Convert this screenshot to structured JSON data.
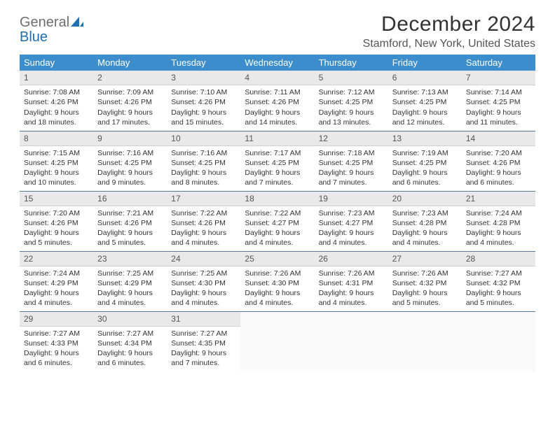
{
  "logo": {
    "word1": "General",
    "word2": "Blue",
    "icon_color": "#1f6fb2",
    "word1_color": "#6e6e6e",
    "word2_color": "#1f6fb2"
  },
  "title": "December 2024",
  "location": "Stamford, New York, United States",
  "header_bg": "#3c8dcc",
  "header_fg": "#ffffff",
  "daynum_bg": "#e9e9e9",
  "row_border": "#5a7a9a",
  "weekdays": [
    "Sunday",
    "Monday",
    "Tuesday",
    "Wednesday",
    "Thursday",
    "Friday",
    "Saturday"
  ],
  "weeks": [
    [
      {
        "n": "1",
        "sr": "Sunrise: 7:08 AM",
        "ss": "Sunset: 4:26 PM",
        "d1": "Daylight: 9 hours",
        "d2": "and 18 minutes."
      },
      {
        "n": "2",
        "sr": "Sunrise: 7:09 AM",
        "ss": "Sunset: 4:26 PM",
        "d1": "Daylight: 9 hours",
        "d2": "and 17 minutes."
      },
      {
        "n": "3",
        "sr": "Sunrise: 7:10 AM",
        "ss": "Sunset: 4:26 PM",
        "d1": "Daylight: 9 hours",
        "d2": "and 15 minutes."
      },
      {
        "n": "4",
        "sr": "Sunrise: 7:11 AM",
        "ss": "Sunset: 4:26 PM",
        "d1": "Daylight: 9 hours",
        "d2": "and 14 minutes."
      },
      {
        "n": "5",
        "sr": "Sunrise: 7:12 AM",
        "ss": "Sunset: 4:25 PM",
        "d1": "Daylight: 9 hours",
        "d2": "and 13 minutes."
      },
      {
        "n": "6",
        "sr": "Sunrise: 7:13 AM",
        "ss": "Sunset: 4:25 PM",
        "d1": "Daylight: 9 hours",
        "d2": "and 12 minutes."
      },
      {
        "n": "7",
        "sr": "Sunrise: 7:14 AM",
        "ss": "Sunset: 4:25 PM",
        "d1": "Daylight: 9 hours",
        "d2": "and 11 minutes."
      }
    ],
    [
      {
        "n": "8",
        "sr": "Sunrise: 7:15 AM",
        "ss": "Sunset: 4:25 PM",
        "d1": "Daylight: 9 hours",
        "d2": "and 10 minutes."
      },
      {
        "n": "9",
        "sr": "Sunrise: 7:16 AM",
        "ss": "Sunset: 4:25 PM",
        "d1": "Daylight: 9 hours",
        "d2": "and 9 minutes."
      },
      {
        "n": "10",
        "sr": "Sunrise: 7:16 AM",
        "ss": "Sunset: 4:25 PM",
        "d1": "Daylight: 9 hours",
        "d2": "and 8 minutes."
      },
      {
        "n": "11",
        "sr": "Sunrise: 7:17 AM",
        "ss": "Sunset: 4:25 PM",
        "d1": "Daylight: 9 hours",
        "d2": "and 7 minutes."
      },
      {
        "n": "12",
        "sr": "Sunrise: 7:18 AM",
        "ss": "Sunset: 4:25 PM",
        "d1": "Daylight: 9 hours",
        "d2": "and 7 minutes."
      },
      {
        "n": "13",
        "sr": "Sunrise: 7:19 AM",
        "ss": "Sunset: 4:25 PM",
        "d1": "Daylight: 9 hours",
        "d2": "and 6 minutes."
      },
      {
        "n": "14",
        "sr": "Sunrise: 7:20 AM",
        "ss": "Sunset: 4:26 PM",
        "d1": "Daylight: 9 hours",
        "d2": "and 6 minutes."
      }
    ],
    [
      {
        "n": "15",
        "sr": "Sunrise: 7:20 AM",
        "ss": "Sunset: 4:26 PM",
        "d1": "Daylight: 9 hours",
        "d2": "and 5 minutes."
      },
      {
        "n": "16",
        "sr": "Sunrise: 7:21 AM",
        "ss": "Sunset: 4:26 PM",
        "d1": "Daylight: 9 hours",
        "d2": "and 5 minutes."
      },
      {
        "n": "17",
        "sr": "Sunrise: 7:22 AM",
        "ss": "Sunset: 4:26 PM",
        "d1": "Daylight: 9 hours",
        "d2": "and 4 minutes."
      },
      {
        "n": "18",
        "sr": "Sunrise: 7:22 AM",
        "ss": "Sunset: 4:27 PM",
        "d1": "Daylight: 9 hours",
        "d2": "and 4 minutes."
      },
      {
        "n": "19",
        "sr": "Sunrise: 7:23 AM",
        "ss": "Sunset: 4:27 PM",
        "d1": "Daylight: 9 hours",
        "d2": "and 4 minutes."
      },
      {
        "n": "20",
        "sr": "Sunrise: 7:23 AM",
        "ss": "Sunset: 4:28 PM",
        "d1": "Daylight: 9 hours",
        "d2": "and 4 minutes."
      },
      {
        "n": "21",
        "sr": "Sunrise: 7:24 AM",
        "ss": "Sunset: 4:28 PM",
        "d1": "Daylight: 9 hours",
        "d2": "and 4 minutes."
      }
    ],
    [
      {
        "n": "22",
        "sr": "Sunrise: 7:24 AM",
        "ss": "Sunset: 4:29 PM",
        "d1": "Daylight: 9 hours",
        "d2": "and 4 minutes."
      },
      {
        "n": "23",
        "sr": "Sunrise: 7:25 AM",
        "ss": "Sunset: 4:29 PM",
        "d1": "Daylight: 9 hours",
        "d2": "and 4 minutes."
      },
      {
        "n": "24",
        "sr": "Sunrise: 7:25 AM",
        "ss": "Sunset: 4:30 PM",
        "d1": "Daylight: 9 hours",
        "d2": "and 4 minutes."
      },
      {
        "n": "25",
        "sr": "Sunrise: 7:26 AM",
        "ss": "Sunset: 4:30 PM",
        "d1": "Daylight: 9 hours",
        "d2": "and 4 minutes."
      },
      {
        "n": "26",
        "sr": "Sunrise: 7:26 AM",
        "ss": "Sunset: 4:31 PM",
        "d1": "Daylight: 9 hours",
        "d2": "and 4 minutes."
      },
      {
        "n": "27",
        "sr": "Sunrise: 7:26 AM",
        "ss": "Sunset: 4:32 PM",
        "d1": "Daylight: 9 hours",
        "d2": "and 5 minutes."
      },
      {
        "n": "28",
        "sr": "Sunrise: 7:27 AM",
        "ss": "Sunset: 4:32 PM",
        "d1": "Daylight: 9 hours",
        "d2": "and 5 minutes."
      }
    ],
    [
      {
        "n": "29",
        "sr": "Sunrise: 7:27 AM",
        "ss": "Sunset: 4:33 PM",
        "d1": "Daylight: 9 hours",
        "d2": "and 6 minutes."
      },
      {
        "n": "30",
        "sr": "Sunrise: 7:27 AM",
        "ss": "Sunset: 4:34 PM",
        "d1": "Daylight: 9 hours",
        "d2": "and 6 minutes."
      },
      {
        "n": "31",
        "sr": "Sunrise: 7:27 AM",
        "ss": "Sunset: 4:35 PM",
        "d1": "Daylight: 9 hours",
        "d2": "and 7 minutes."
      },
      null,
      null,
      null,
      null
    ]
  ]
}
